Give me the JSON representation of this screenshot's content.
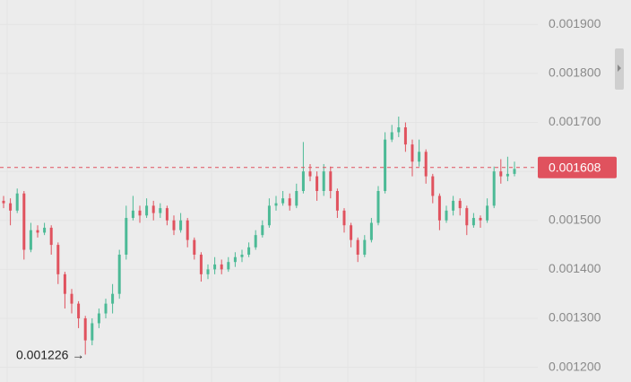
{
  "chart_data": {
    "type": "candlestick",
    "open": [
      0.00154,
      0.001535,
      0.00152,
      0.001555,
      0.00144,
      0.00148,
      0.001475,
      0.001485,
      0.00145,
      0.00139,
      0.00135,
      0.00133,
      0.0013,
      0.001255,
      0.00129,
      0.00131,
      0.00133,
      0.00135,
      0.00143,
      0.001505,
      0.00152,
      0.00151,
      0.00153,
      0.001515,
      0.001525,
      0.0015,
      0.00148,
      0.0015,
      0.00146,
      0.00143,
      0.00139,
      0.0014,
      0.00141,
      0.0014,
      0.001415,
      0.001425,
      0.00143,
      0.001445,
      0.00147,
      0.00149,
      0.00153,
      0.001535,
      0.001545,
      0.00153,
      0.00156,
      0.0016,
      0.00159,
      0.00156,
      0.0016,
      0.00156,
      0.00152,
      0.00149,
      0.00146,
      0.00143,
      0.00146,
      0.001495,
      0.00156,
      0.001665,
      0.00168,
      0.00169,
      0.001655,
      0.00162,
      0.00164,
      0.00159,
      0.00155,
      0.0015,
      0.00152,
      0.00154,
      0.001525,
      0.00149,
      0.001505,
      0.0015,
      0.00153,
      0.0016,
      0.00159,
      0.001595
    ],
    "high": [
      0.00155,
      0.001545,
      0.001565,
      0.00156,
      0.001495,
      0.00149,
      0.001495,
      0.00149,
      0.001455,
      0.001395,
      0.00136,
      0.001335,
      0.001305,
      0.0013,
      0.00132,
      0.00134,
      0.00137,
      0.00144,
      0.00153,
      0.00155,
      0.00153,
      0.001545,
      0.00154,
      0.001535,
      0.00153,
      0.00151,
      0.001515,
      0.001505,
      0.001465,
      0.001435,
      0.00141,
      0.001425,
      0.00142,
      0.001425,
      0.001435,
      0.00144,
      0.001455,
      0.00148,
      0.0015,
      0.001545,
      0.00155,
      0.00156,
      0.001555,
      0.001575,
      0.00166,
      0.001615,
      0.0016,
      0.001615,
      0.00161,
      0.001565,
      0.001525,
      0.001495,
      0.001465,
      0.00147,
      0.001505,
      0.00157,
      0.00168,
      0.001695,
      0.001712,
      0.0017,
      0.001665,
      0.001665,
      0.001645,
      0.001595,
      0.001555,
      0.00153,
      0.00155,
      0.001545,
      0.00153,
      0.001515,
      0.00151,
      0.001545,
      0.00161,
      0.001625,
      0.00163,
      0.00162
    ],
    "low": [
      0.001525,
      0.00149,
      0.001515,
      0.00142,
      0.001435,
      0.001465,
      0.00147,
      0.00143,
      0.00137,
      0.00132,
      0.00131,
      0.00128,
      0.001226,
      0.001245,
      0.00128,
      0.0013,
      0.00131,
      0.00134,
      0.00142,
      0.0015,
      0.001495,
      0.001505,
      0.0015,
      0.001505,
      0.00149,
      0.00147,
      0.001475,
      0.001445,
      0.00142,
      0.001375,
      0.00138,
      0.00139,
      0.00139,
      0.001395,
      0.001405,
      0.001415,
      0.001425,
      0.00144,
      0.001465,
      0.001485,
      0.00152,
      0.00153,
      0.00152,
      0.001525,
      0.001555,
      0.00158,
      0.00154,
      0.00155,
      0.001545,
      0.001505,
      0.001475,
      0.001445,
      0.001415,
      0.001425,
      0.001455,
      0.00149,
      0.001555,
      0.00166,
      0.00167,
      0.00164,
      0.00159,
      0.00161,
      0.001575,
      0.001535,
      0.00148,
      0.001495,
      0.00151,
      0.00151,
      0.00147,
      0.001485,
      0.001485,
      0.001495,
      0.001525,
      0.001575,
      0.00158,
      0.00159
    ],
    "close": [
      0.001535,
      0.00152,
      0.001555,
      0.00144,
      0.00148,
      0.001475,
      0.001485,
      0.00145,
      0.00139,
      0.00135,
      0.00133,
      0.0013,
      0.001255,
      0.00129,
      0.00131,
      0.00133,
      0.00135,
      0.00143,
      0.001505,
      0.00152,
      0.00151,
      0.00153,
      0.001515,
      0.001525,
      0.0015,
      0.00148,
      0.0015,
      0.00146,
      0.00143,
      0.00139,
      0.0014,
      0.00141,
      0.0014,
      0.001415,
      0.001425,
      0.00143,
      0.001445,
      0.00147,
      0.00149,
      0.00153,
      0.001535,
      0.001545,
      0.00153,
      0.00156,
      0.0016,
      0.00159,
      0.00156,
      0.0016,
      0.00156,
      0.00152,
      0.00149,
      0.00146,
      0.00143,
      0.00146,
      0.001495,
      0.00156,
      0.001665,
      0.00168,
      0.00169,
      0.001655,
      0.00162,
      0.00164,
      0.00159,
      0.00155,
      0.0015,
      0.00152,
      0.00154,
      0.001525,
      0.00149,
      0.001505,
      0.0015,
      0.00153,
      0.0016,
      0.00159,
      0.001595,
      0.001605
    ],
    "up_color": "#4cba96",
    "down_color": "#e0525e",
    "ylim": [
      0.00117,
      0.00195
    ],
    "yticks": [
      {
        "value": 0.0012,
        "label": "0.001200"
      },
      {
        "value": 0.0013,
        "label": "0.001300"
      },
      {
        "value": 0.0014,
        "label": "0.001400"
      },
      {
        "value": 0.0015,
        "label": "0.001500"
      },
      {
        "value": 0.0016,
        "label": "0.001600"
      },
      {
        "value": 0.0017,
        "label": "0.001700"
      },
      {
        "value": 0.0018,
        "label": "0.001800"
      },
      {
        "value": 0.0019,
        "label": "0.001900"
      }
    ],
    "last_price": 0.001608,
    "low_annotation": "0.001226 →",
    "grid": true
  }
}
